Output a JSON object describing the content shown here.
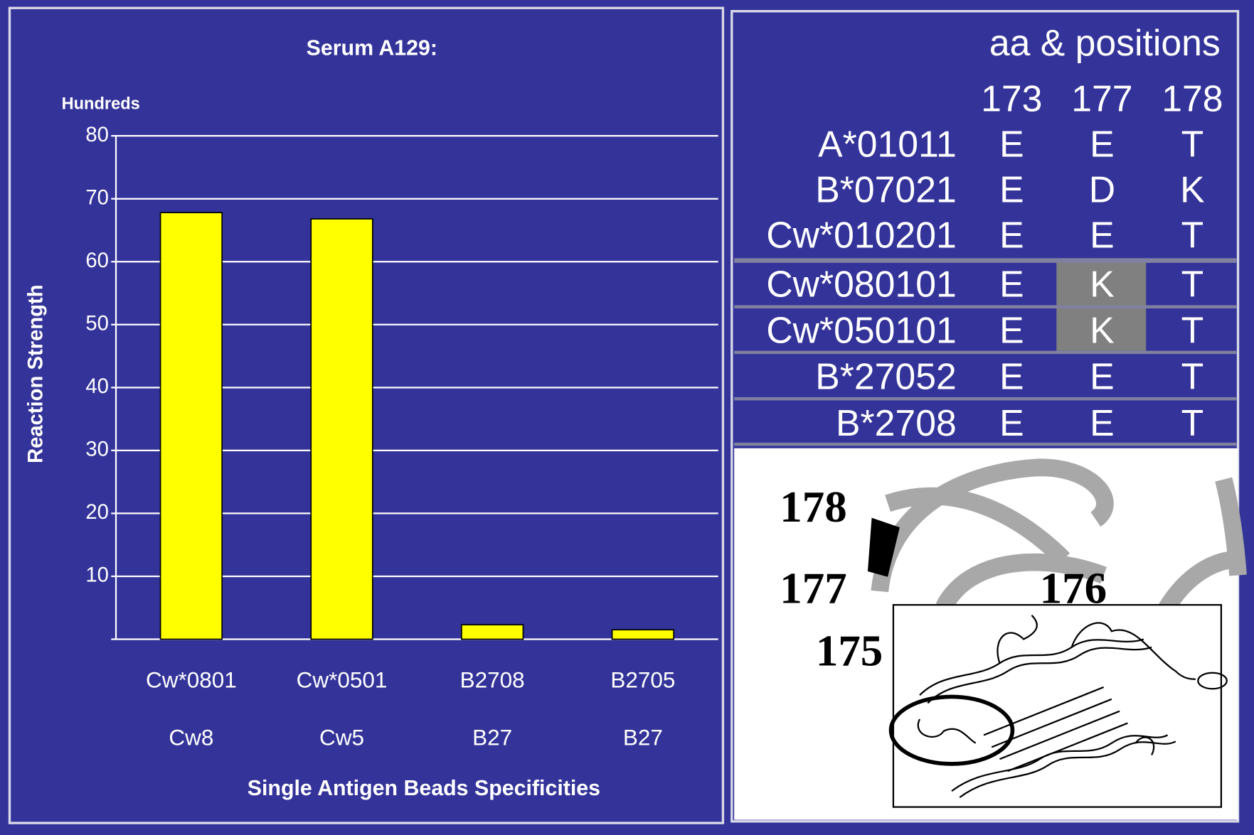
{
  "chart_data": {
    "type": "bar",
    "title": "Serum A129:",
    "units_label": "Hundreds",
    "y_label": "Reaction Strength",
    "x_label": "Single Antigen Beads Specificities",
    "categories": [
      "Cw*0801",
      "Cw*0501",
      "B2708",
      "B2705"
    ],
    "category_groups": [
      "Cw8",
      "Cw5",
      "B27",
      "B27"
    ],
    "values": [
      67.8,
      66.8,
      2.3,
      1.5
    ],
    "color": "#ffff00",
    "ylim": [
      0,
      80
    ],
    "yticks": [
      10,
      20,
      30,
      40,
      50,
      60,
      70,
      80
    ],
    "grid": true
  },
  "table": {
    "title": "aa & positions",
    "columns": [
      "173",
      "177",
      "178"
    ],
    "rows": [
      [
        "A*01011",
        "E",
        "E",
        "T"
      ],
      [
        "B*07021",
        "E",
        "D",
        "K"
      ],
      [
        "Cw*010201",
        "E",
        "E",
        "T"
      ],
      [
        "Cw*080101",
        "E",
        "K",
        "T"
      ],
      [
        "Cw*050101",
        "E",
        "K",
        "T"
      ],
      [
        "B*27052",
        "E",
        "E",
        "T"
      ],
      [
        "B*2708",
        "E",
        "E",
        "T"
      ]
    ]
  },
  "image": {
    "labels": [
      "178",
      "177",
      "176",
      "175"
    ]
  }
}
